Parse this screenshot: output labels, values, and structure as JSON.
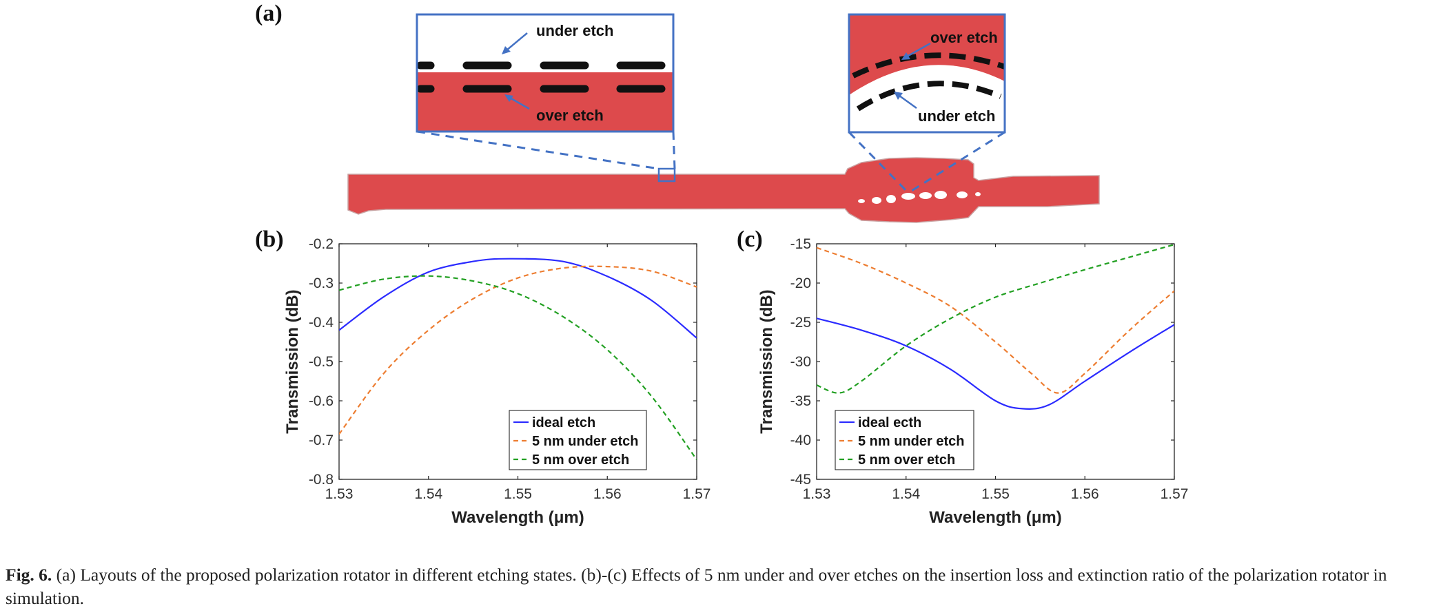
{
  "panels": {
    "a": {
      "letter": "(a)",
      "inset_left": {
        "label_top": "under etch",
        "label_bottom": "over etch"
      },
      "inset_right": {
        "label_top": "over etch",
        "label_bottom": "under etch"
      }
    },
    "b": {
      "letter": "(b)"
    },
    "c": {
      "letter": "(c)"
    }
  },
  "colors": {
    "device_fill": "#dd4a4c",
    "inset_border": "#4472c4",
    "ideal": "#2b2bff",
    "under": "#ed7d31",
    "over": "#22a022"
  },
  "chart_data": [
    {
      "type": "line",
      "panel": "(b)",
      "xlabel": "Wavelength (μm)",
      "ylabel": "Transmission (dB)",
      "xlim": [
        1.53,
        1.57
      ],
      "ylim": [
        -0.8,
        -0.2
      ],
      "xticks": [
        "1.53",
        "1.54",
        "1.55",
        "1.56",
        "1.57"
      ],
      "yticks": [
        "-0.2",
        "-0.3",
        "-0.4",
        "-0.5",
        "-0.6",
        "-0.7",
        "-0.8"
      ],
      "legend_position": "bottom-right",
      "series": [
        {
          "name": "ideal etch",
          "style": "solid",
          "color": "#2b2bff",
          "x": [
            1.53,
            1.535,
            1.54,
            1.545,
            1.549,
            1.555,
            1.56,
            1.565,
            1.57
          ],
          "y": [
            -0.42,
            -0.335,
            -0.272,
            -0.245,
            -0.238,
            -0.245,
            -0.283,
            -0.345,
            -0.44
          ]
        },
        {
          "name": "5 nm under etch",
          "style": "dashed",
          "color": "#ed7d31",
          "x": [
            1.53,
            1.535,
            1.54,
            1.545,
            1.55,
            1.555,
            1.56,
            1.565,
            1.57
          ],
          "y": [
            -0.685,
            -0.53,
            -0.42,
            -0.34,
            -0.287,
            -0.262,
            -0.258,
            -0.27,
            -0.31
          ]
        },
        {
          "name": "5 nm over etch",
          "style": "dashed",
          "color": "#22a022",
          "x": [
            1.53,
            1.535,
            1.54,
            1.545,
            1.55,
            1.555,
            1.56,
            1.565,
            1.57
          ],
          "y": [
            -0.318,
            -0.29,
            -0.282,
            -0.295,
            -0.327,
            -0.385,
            -0.47,
            -0.59,
            -0.75
          ]
        }
      ]
    },
    {
      "type": "line",
      "panel": "(c)",
      "xlabel": "Wavelength (μm)",
      "ylabel": "Transmission (dB)",
      "xlim": [
        1.53,
        1.57
      ],
      "ylim": [
        -45,
        -15
      ],
      "xticks": [
        "1.53",
        "1.54",
        "1.55",
        "1.56",
        "1.57"
      ],
      "yticks": [
        "-15",
        "-20",
        "-25",
        "-30",
        "-35",
        "-40",
        "-45"
      ],
      "legend_position": "bottom-left",
      "series": [
        {
          "name": "ideal ecth",
          "style": "solid",
          "color": "#2b2bff",
          "x": [
            1.53,
            1.535,
            1.54,
            1.545,
            1.55,
            1.553,
            1.556,
            1.56,
            1.565,
            1.57
          ],
          "y": [
            -24.5,
            -26.0,
            -28.0,
            -31.0,
            -35.0,
            -36.0,
            -35.5,
            -32.5,
            -28.8,
            -25.3
          ]
        },
        {
          "name": "5 nm under etch",
          "style": "dashed",
          "color": "#ed7d31",
          "x": [
            1.53,
            1.535,
            1.54,
            1.545,
            1.55,
            1.554,
            1.557,
            1.56,
            1.565,
            1.57
          ],
          "y": [
            -15.5,
            -17.5,
            -20.0,
            -23.0,
            -27.5,
            -31.5,
            -34.0,
            -31.5,
            -26.0,
            -21.0
          ]
        },
        {
          "name": "5 nm over etch",
          "style": "dashed",
          "color": "#22a022",
          "x": [
            1.53,
            1.5325,
            1.535,
            1.54,
            1.545,
            1.55,
            1.555,
            1.56,
            1.565,
            1.57
          ],
          "y": [
            -33.0,
            -34.0,
            -32.5,
            -28.0,
            -24.5,
            -21.8,
            -20.0,
            -18.3,
            -16.7,
            -15.1
          ]
        }
      ]
    }
  ],
  "caption": {
    "label": "Fig. 6.",
    "text": "(a) Layouts of the proposed polarization rotator in different etching states. (b)-(c) Effects of 5 nm under and over etches on the insertion loss and extinction ratio of the polarization rotator in simulation."
  }
}
